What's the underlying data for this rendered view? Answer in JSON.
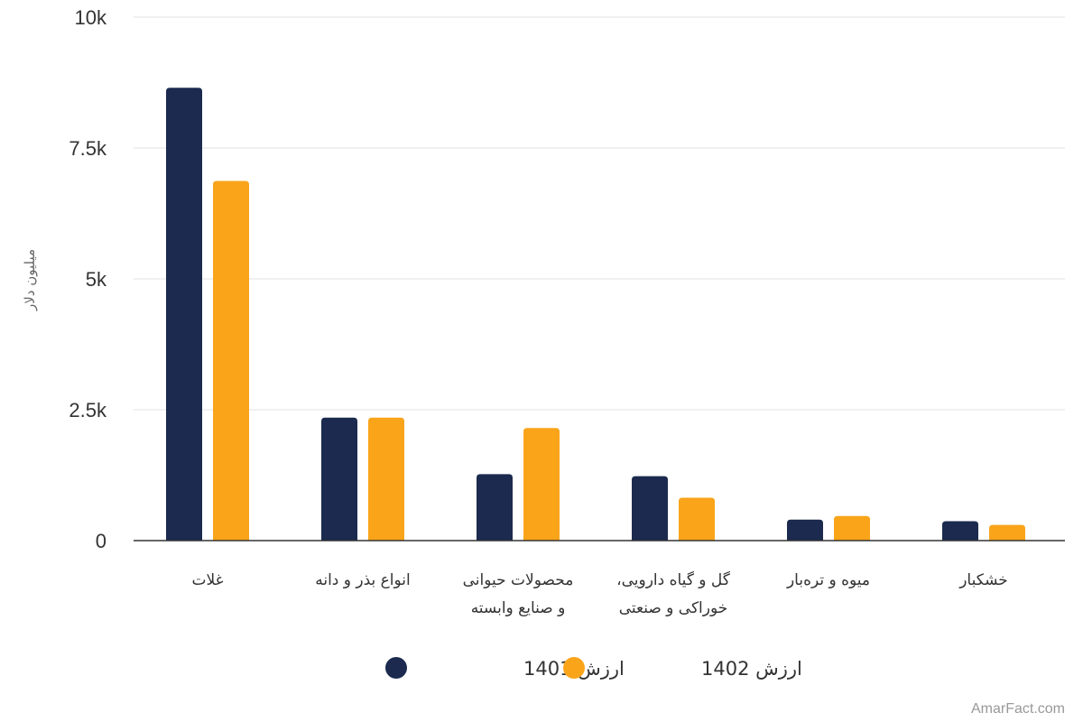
{
  "chart_data": {
    "type": "bar",
    "title": "",
    "xlabel": "",
    "ylabel": "میلیون دلار",
    "ylim": [
      0,
      10000
    ],
    "yticks": [
      {
        "value": 0,
        "label": "0"
      },
      {
        "value": 2500,
        "label": "2.5k"
      },
      {
        "value": 5000,
        "label": "5k"
      },
      {
        "value": 7500,
        "label": "7.5k"
      },
      {
        "value": 10000,
        "label": "10k"
      }
    ],
    "categories": [
      [
        "غلات"
      ],
      [
        "انواع بذر و دانه"
      ],
      [
        "محصولات حیوانی",
        "و صنایع وابسته"
      ],
      [
        "گل و گیاه دارویی،",
        "خوراکی و صنعتی"
      ],
      [
        "میوه و تره‌بار"
      ],
      [
        "خشکبار"
      ]
    ],
    "series": [
      {
        "name": "ارزش 1401",
        "color": "#1b2a4e",
        "values": [
          8650,
          2350,
          1270,
          1230,
          400,
          370
        ]
      },
      {
        "name": "ارزش 1402",
        "color": "#faa41a",
        "values": [
          6870,
          2350,
          2150,
          820,
          470,
          300
        ]
      }
    ],
    "grid": true,
    "legend_position": "bottom"
  },
  "credit": "AmarFact.com"
}
